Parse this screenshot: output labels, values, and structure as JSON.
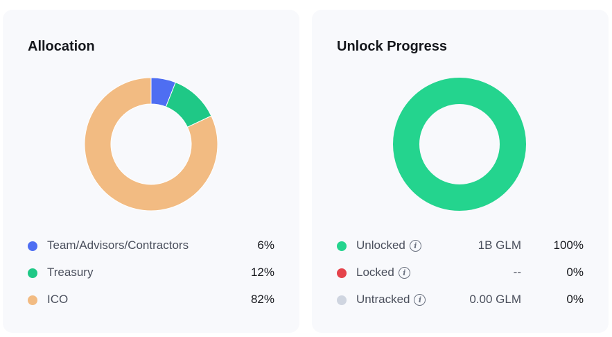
{
  "chart_data": [
    {
      "type": "pie",
      "title": "Allocation",
      "donut": true,
      "categories": [
        "Team/Advisors/Contractors",
        "Treasury",
        "ICO"
      ],
      "values": [
        6,
        12,
        82
      ],
      "value_labels": [
        "6%",
        "12%",
        "82%"
      ],
      "colors": [
        "#4e6ef2",
        "#1fc886",
        "#f2bb82"
      ]
    },
    {
      "type": "pie",
      "title": "Unlock Progress",
      "donut": true,
      "categories": [
        "Unlocked",
        "Locked",
        "Untracked"
      ],
      "values": [
        100,
        0,
        0
      ],
      "amounts": [
        "1B GLM",
        "--",
        "0.00 GLM"
      ],
      "value_labels": [
        "100%",
        "0%",
        "0%"
      ],
      "colors": [
        "#24d48e",
        "#e5434b",
        "#cfd5e0"
      ],
      "info_icon": "info-circle-icon"
    }
  ]
}
